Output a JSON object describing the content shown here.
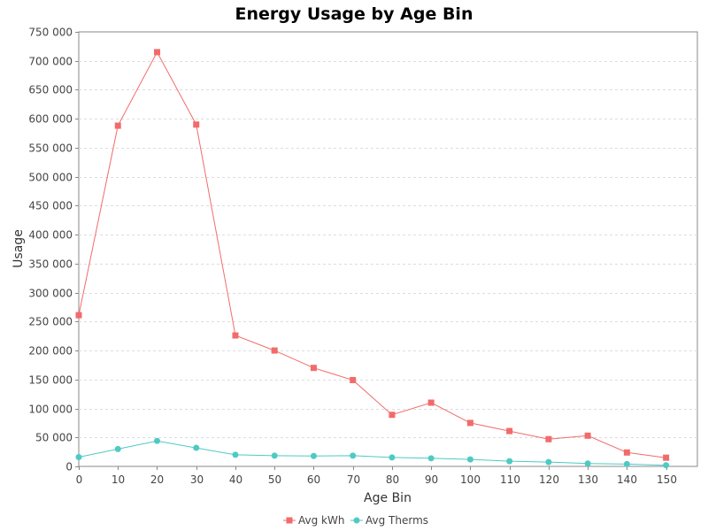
{
  "chart_data": {
    "type": "line",
    "title": "Energy Usage by Age Bin",
    "xlabel": "Age Bin",
    "ylabel": "Usage",
    "x": [
      0,
      10,
      20,
      30,
      40,
      50,
      60,
      70,
      80,
      90,
      100,
      110,
      120,
      130,
      140,
      150
    ],
    "xlim": [
      0,
      158
    ],
    "ylim": [
      0,
      750000
    ],
    "x_ticks": [
      0,
      10,
      20,
      30,
      40,
      50,
      60,
      70,
      80,
      90,
      100,
      110,
      120,
      130,
      140,
      150
    ],
    "x_tick_labels": [
      "0",
      "10",
      "20",
      "30",
      "40",
      "50",
      "60",
      "70",
      "80",
      "90",
      "100",
      "110",
      "120",
      "130",
      "140",
      "150"
    ],
    "y_ticks": [
      0,
      50000,
      100000,
      150000,
      200000,
      250000,
      300000,
      350000,
      400000,
      450000,
      500000,
      550000,
      600000,
      650000,
      700000,
      750000
    ],
    "y_tick_labels": [
      "0",
      "50 000",
      "100 000",
      "150 000",
      "200 000",
      "250 000",
      "300 000",
      "350 000",
      "400 000",
      "450 000",
      "500 000",
      "550 000",
      "600 000",
      "650 000",
      "700 000",
      "750 000"
    ],
    "grid": "horizontal",
    "legend_position": "bottom",
    "series": [
      {
        "name": "Avg kWh",
        "color": "#f26b6b",
        "marker": "square",
        "values": [
          261000,
          588000,
          715000,
          590000,
          226000,
          200000,
          170000,
          149000,
          89000,
          110000,
          75000,
          61000,
          47000,
          53000,
          24000,
          15000
        ]
      },
      {
        "name": "Avg Therms",
        "color": "#4ecac4",
        "marker": "circle",
        "values": [
          16000,
          30000,
          44000,
          32000,
          20000,
          18500,
          18000,
          18500,
          15500,
          14000,
          12000,
          9000,
          7500,
          5000,
          4000,
          2000
        ]
      }
    ]
  }
}
